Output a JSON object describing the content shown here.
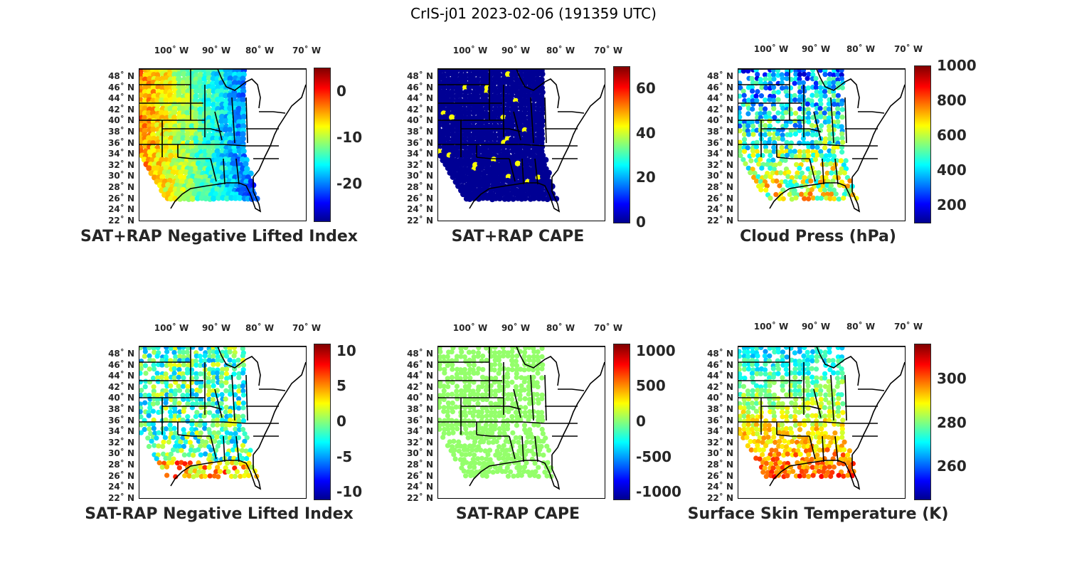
{
  "title": "CrIS-j01 2023-02-06 (191359 UTC)",
  "lon_ticks": [
    "100˚ W",
    "90˚ W",
    "80˚ W",
    "70˚ W"
  ],
  "lat_ticks": [
    "48˚ N",
    "46˚ N",
    "44˚ N",
    "42˚ N",
    "40˚ N",
    "38˚ N",
    "36˚ N",
    "34˚ N",
    "32˚ N",
    "30˚ N",
    "28˚ N",
    "26˚ N",
    "24˚ N",
    "22˚ N"
  ],
  "colormap": "jet",
  "panels": [
    {
      "caption": "SAT+RAP Negative Lifted Index",
      "colorbar_ticks": [
        "0",
        "-10",
        "-20"
      ],
      "colorbar_range": [
        -28,
        5
      ],
      "fill": "mixed-warm"
    },
    {
      "caption": "SAT+RAP CAPE",
      "colorbar_ticks": [
        "60",
        "40",
        "20",
        "0"
      ],
      "colorbar_range": [
        0,
        70
      ],
      "fill": "dark-blue"
    },
    {
      "caption": "Cloud Press (hPa)",
      "colorbar_ticks": [
        "1000",
        "800",
        "600",
        "400",
        "200"
      ],
      "colorbar_range": [
        100,
        1000
      ],
      "fill": "mixed-blue"
    },
    {
      "caption": "SAT-RAP Negative Lifted Index",
      "colorbar_ticks": [
        "10",
        "5",
        "0",
        "-5",
        "-10"
      ],
      "colorbar_range": [
        -11,
        11
      ],
      "fill": "mixed-cyan"
    },
    {
      "caption": "SAT-RAP CAPE",
      "colorbar_ticks": [
        "1000",
        "500",
        "0",
        "-500",
        "-1000"
      ],
      "colorbar_range": [
        -1100,
        1100
      ],
      "fill": "flat-green"
    },
    {
      "caption": "Surface Skin Temperature (K)",
      "colorbar_ticks": [
        "300",
        "280",
        "260"
      ],
      "colorbar_range": [
        245,
        316
      ],
      "fill": "mixed-temp"
    }
  ]
}
